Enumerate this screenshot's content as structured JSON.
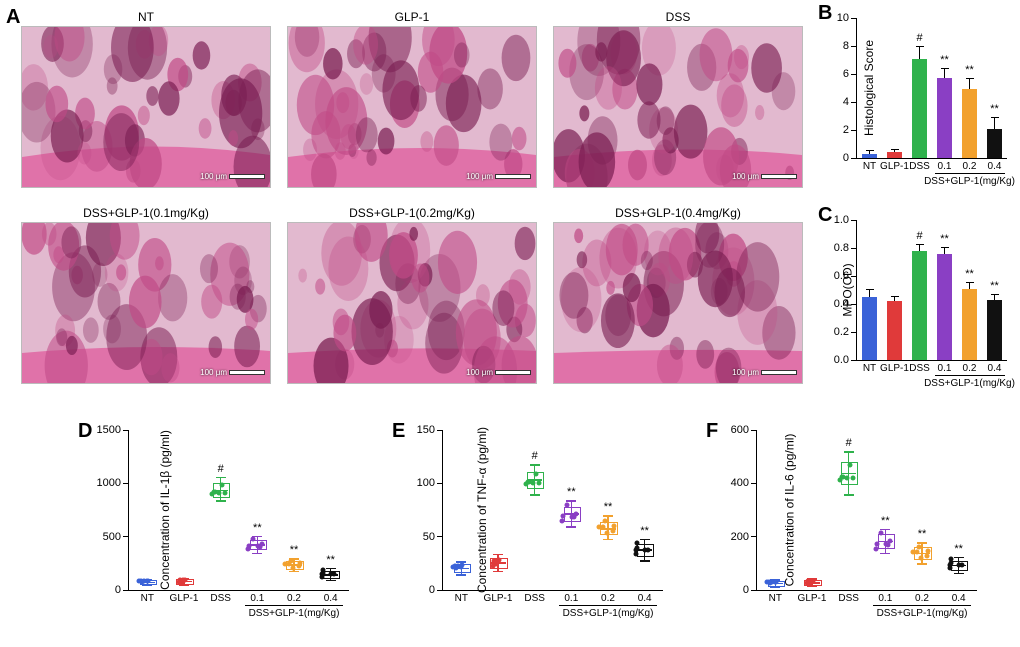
{
  "colors": {
    "NT": "#3a62d8",
    "GLP1": "#e03a3a",
    "DSS": "#2fb24c",
    "D01": "#8a3fc4",
    "D02": "#f2a12e",
    "D04": "#111111"
  },
  "group_labels": [
    "NT",
    "GLP-1",
    "DSS",
    "0.1",
    "0.2",
    "0.4"
  ],
  "dose_group_label": "DSS+GLP-1(mg/Kg)",
  "panelA": {
    "label": "A",
    "images": [
      {
        "title": "NT"
      },
      {
        "title": "GLP-1"
      },
      {
        "title": "DSS"
      },
      {
        "title": "DSS+GLP-1(0.1mg/Kg)"
      },
      {
        "title": "DSS+GLP-1(0.2mg/Kg)"
      },
      {
        "title": "DSS+GLP-1(0.4mg/Kg)"
      }
    ],
    "scalebar_text": "100 μm"
  },
  "panelB": {
    "label": "B",
    "ylabel": "Histological Score",
    "ylim": [
      0,
      10
    ],
    "ytick_step": 2,
    "bars": [
      {
        "key": "NT",
        "val": 0.3,
        "err": 0.25,
        "sig": ""
      },
      {
        "key": "GLP1",
        "val": 0.4,
        "err": 0.25,
        "sig": ""
      },
      {
        "key": "DSS",
        "val": 7.1,
        "err": 0.9,
        "sig": "#"
      },
      {
        "key": "D01",
        "val": 5.7,
        "err": 0.7,
        "sig": "**"
      },
      {
        "key": "D02",
        "val": 4.9,
        "err": 0.8,
        "sig": "**"
      },
      {
        "key": "D04",
        "val": 2.1,
        "err": 0.8,
        "sig": "**"
      }
    ]
  },
  "panelC": {
    "label": "C",
    "ylabel": "MPO(OD)",
    "ylim": [
      0,
      1.0
    ],
    "ytick_step": 0.2,
    "bars": [
      {
        "key": "NT",
        "val": 0.45,
        "err": 0.06,
        "sig": ""
      },
      {
        "key": "GLP1",
        "val": 0.42,
        "err": 0.04,
        "sig": ""
      },
      {
        "key": "DSS",
        "val": 0.78,
        "err": 0.05,
        "sig": "#"
      },
      {
        "key": "D01",
        "val": 0.76,
        "err": 0.05,
        "sig": "**"
      },
      {
        "key": "D02",
        "val": 0.51,
        "err": 0.05,
        "sig": "**"
      },
      {
        "key": "D04",
        "val": 0.43,
        "err": 0.04,
        "sig": "**"
      }
    ]
  },
  "panelD": {
    "label": "D",
    "ylabel": "Concentration of IL-1β (pg/ml)",
    "ylim": [
      0,
      1500
    ],
    "ytick_step": 500,
    "series": [
      {
        "key": "NT",
        "q1": 65,
        "med": 78,
        "q3": 92,
        "lo": 50,
        "hi": 105,
        "sig": ""
      },
      {
        "key": "GLP1",
        "q1": 70,
        "med": 85,
        "q3": 100,
        "lo": 55,
        "hi": 115,
        "sig": ""
      },
      {
        "key": "DSS",
        "q1": 880,
        "med": 940,
        "q3": 1000,
        "lo": 840,
        "hi": 1060,
        "sig": "#"
      },
      {
        "key": "D01",
        "q1": 390,
        "med": 430,
        "q3": 470,
        "lo": 350,
        "hi": 510,
        "sig": "**"
      },
      {
        "key": "D02",
        "q1": 210,
        "med": 240,
        "q3": 270,
        "lo": 180,
        "hi": 300,
        "sig": "**"
      },
      {
        "key": "D04",
        "q1": 120,
        "med": 150,
        "q3": 180,
        "lo": 95,
        "hi": 210,
        "sig": "**"
      }
    ]
  },
  "panelE": {
    "label": "E",
    "ylabel": "Concentration of TNF-α (pg/ml)",
    "ylim": [
      0,
      150
    ],
    "ytick_step": 50,
    "series": [
      {
        "key": "NT",
        "q1": 18,
        "med": 21,
        "q3": 24,
        "lo": 15,
        "hi": 27,
        "sig": ""
      },
      {
        "key": "GLP1",
        "q1": 22,
        "med": 26,
        "q3": 30,
        "lo": 18,
        "hi": 34,
        "sig": ""
      },
      {
        "key": "DSS",
        "q1": 97,
        "med": 104,
        "q3": 111,
        "lo": 90,
        "hi": 118,
        "sig": "#"
      },
      {
        "key": "D01",
        "q1": 66,
        "med": 72,
        "q3": 78,
        "lo": 60,
        "hi": 84,
        "sig": "**"
      },
      {
        "key": "D02",
        "q1": 53,
        "med": 58,
        "q3": 64,
        "lo": 48,
        "hi": 70,
        "sig": "**"
      },
      {
        "key": "D04",
        "q1": 33,
        "med": 38,
        "q3": 43,
        "lo": 28,
        "hi": 48,
        "sig": "**"
      }
    ]
  },
  "panelF": {
    "label": "F",
    "ylabel": "Concentration of IL-6 (pg/ml)",
    "ylim": [
      0,
      600
    ],
    "ytick_step": 200,
    "series": [
      {
        "key": "NT",
        "q1": 20,
        "med": 27,
        "q3": 34,
        "lo": 14,
        "hi": 40,
        "sig": ""
      },
      {
        "key": "GLP1",
        "q1": 24,
        "med": 30,
        "q3": 37,
        "lo": 18,
        "hi": 44,
        "sig": ""
      },
      {
        "key": "DSS",
        "q1": 400,
        "med": 440,
        "q3": 480,
        "lo": 360,
        "hi": 520,
        "sig": "#"
      },
      {
        "key": "D01",
        "q1": 160,
        "med": 185,
        "q3": 210,
        "lo": 140,
        "hi": 230,
        "sig": "**"
      },
      {
        "key": "D02",
        "q1": 120,
        "med": 140,
        "q3": 160,
        "lo": 100,
        "hi": 180,
        "sig": "**"
      },
      {
        "key": "D04",
        "q1": 80,
        "med": 95,
        "q3": 110,
        "lo": 65,
        "hi": 125,
        "sig": "**"
      }
    ]
  }
}
